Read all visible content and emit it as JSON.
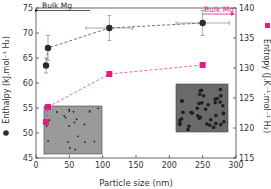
{
  "chart_data": {
    "type": "scatter",
    "x_label": "Particle size (nm)",
    "y_label": "Enthalpy (kJ.mol⁻¹ H₂)",
    "y2_label": "Entropy (J.K⁻¹.mol⁻¹ H₂)",
    "x": [
      15,
      18,
      110,
      250
    ],
    "xlim": [
      0,
      300
    ],
    "xticks": [
      0,
      50,
      100,
      150,
      200,
      250,
      300
    ],
    "ylim": [
      45,
      75
    ],
    "yticks": [
      45,
      50,
      55,
      60,
      65,
      70,
      75
    ],
    "y2lim": [
      115,
      140
    ],
    "y2ticks": [
      115,
      120,
      125,
      130,
      135,
      140
    ],
    "series": [
      {
        "name": "Enthalpy",
        "color": "#2b2b2b",
        "marker": "circle",
        "line_style": "dashed",
        "values": [
          63.5,
          67,
          71,
          72
        ],
        "errors": [
          1.5,
          2.5,
          2.5,
          2.5
        ],
        "x_errors": [
          null,
          null,
          35,
          40
        ]
      },
      {
        "name": "Entropy",
        "color": "#e5198a",
        "marker": "square",
        "line_style": "dashed",
        "axis": "y2",
        "values": [
          121,
          123.5,
          129,
          130.5
        ]
      }
    ],
    "annotations": [
      {
        "text": "Bulk Mg",
        "y": 74.5,
        "axis": "y",
        "color": "#2b2b2b"
      },
      {
        "text": "Bulk Mg",
        "y": 139,
        "axis": "y2",
        "color": "#e5198a"
      }
    ]
  }
}
